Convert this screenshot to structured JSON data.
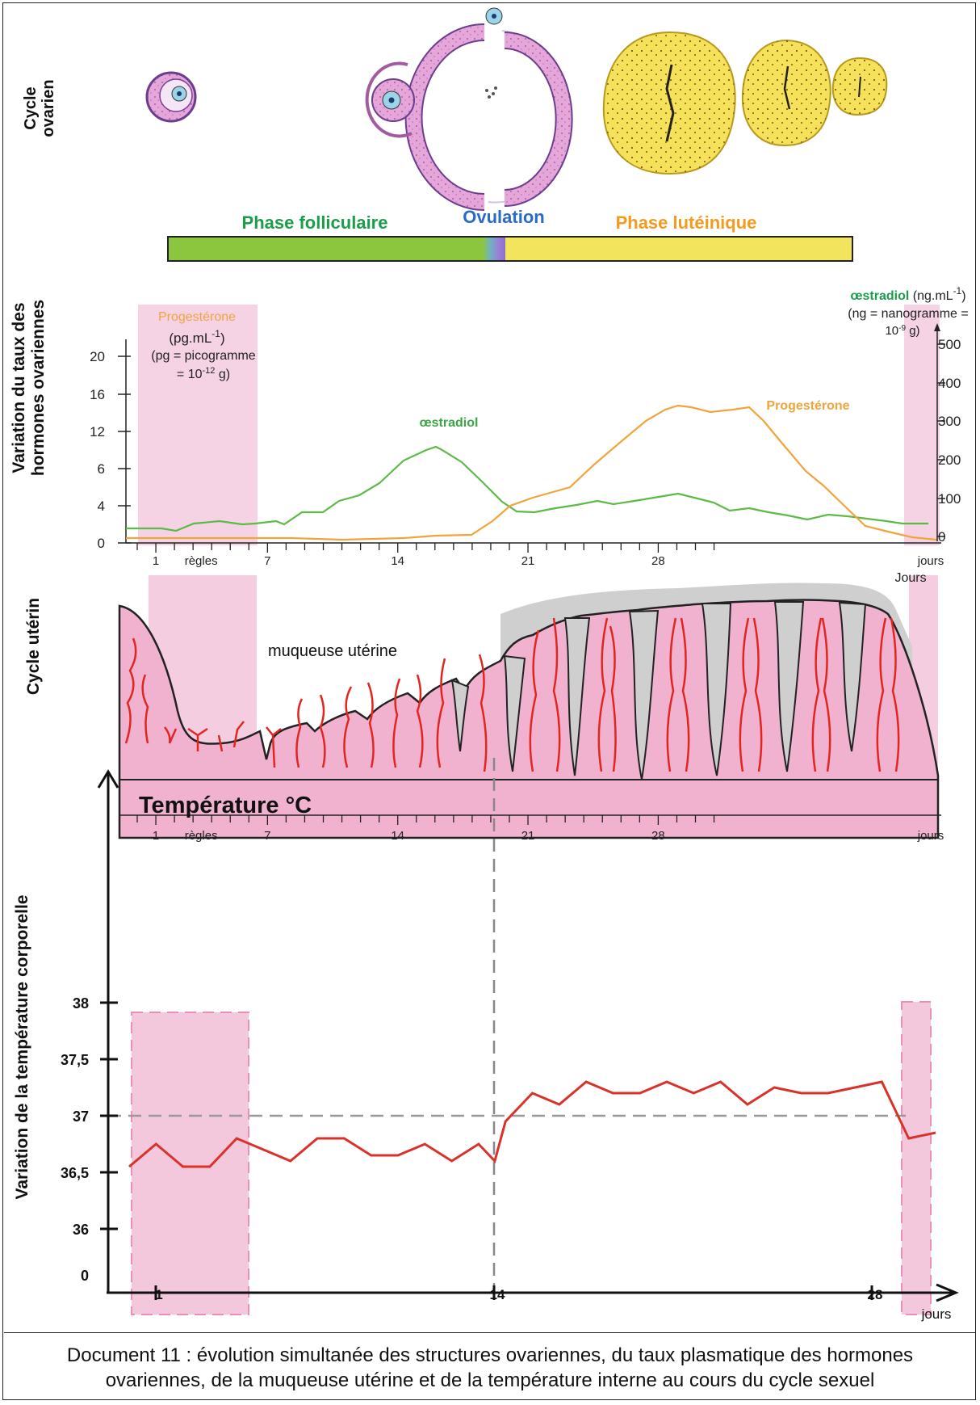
{
  "side_labels": {
    "ovarian_1": "Cycle",
    "ovarian_2": "ovarien",
    "hormones_1": "Variation du taux des",
    "hormones_2": "hormones ovariennes",
    "uterine": "Cycle utérin",
    "temperature": "Variation de la température corporelle"
  },
  "phases": {
    "follicular": "Phase folliculaire",
    "ovulation": "Ovulation",
    "luteal": "Phase lutéinique",
    "colors": {
      "follicular": "#8cc63f",
      "luteal": "#f2e55d",
      "follicular_text": "#1a9e4a",
      "ovulation_text": "#2a6cc4",
      "luteal_text": "#f29b1d"
    }
  },
  "hormone_chart": {
    "progesterone_label": "Progestérone",
    "progesterone_unit": "(pg.mL",
    "progesterone_unit_sup": "-1",
    "progesterone_unit_close": ")",
    "pg_def_1": "(pg = picogramme",
    "pg_def_2": "= 10",
    "pg_def_2_sup": "-12",
    "pg_def_2_end": " g)",
    "estradiol_label": "œstradiol",
    "estradiol_unit": "(ng.mL",
    "estradiol_unit_sup": "-1",
    "estradiol_unit_close": ")",
    "ng_def_1": "(ng = nanogramme =",
    "ng_def_2": "10",
    "ng_def_2_sup": "-9",
    "ng_def_2_end": " g)",
    "estradiol_curve_label": "œstradiol",
    "progesterone_curve_label": "Progestérone",
    "left_ticks": [
      "0",
      "4",
      "6",
      "12",
      "16",
      "20"
    ],
    "right_ticks": [
      "0",
      "100",
      "200",
      "300",
      "400",
      "500"
    ],
    "x_ticks": [
      "1",
      "7",
      "14",
      "21",
      "28"
    ],
    "regles": "règles",
    "jours": "jours",
    "estradiol_color": "#5dba47",
    "progesterone_color": "#f0a53c"
  },
  "uterine_chart": {
    "mucosa_label": "muqueuse utérine",
    "x_ticks": [
      "1",
      "7",
      "14",
      "21",
      "28"
    ],
    "regles": "règles",
    "jours": "jours",
    "jours_top": "Jours",
    "tissue_color": "#f0b2cf",
    "vessel_color": "#e2261f"
  },
  "temperature_chart": {
    "title": "Température °C",
    "y_ticks": [
      "0",
      "36",
      "36,5",
      "37",
      "37,5",
      "38"
    ],
    "x_ticks": [
      "1",
      "14",
      "28"
    ],
    "jours": "jours",
    "line_color": "#d8322a",
    "chart_data": {
      "type": "line",
      "title": "Température °C",
      "xlabel": "jours",
      "ylabel": "Variation de la température corporelle",
      "x": [
        0,
        1,
        2,
        3,
        4,
        5,
        6,
        7,
        8,
        9,
        10,
        11,
        12,
        13,
        13.6,
        14,
        15,
        16,
        17,
        18,
        19,
        20,
        21,
        22,
        23,
        24,
        25,
        26,
        27,
        28,
        29,
        30
      ],
      "y": [
        36.55,
        36.75,
        36.55,
        36.55,
        36.8,
        36.7,
        36.6,
        36.8,
        36.8,
        36.65,
        36.65,
        36.75,
        36.6,
        36.75,
        36.6,
        36.95,
        37.2,
        37.1,
        37.3,
        37.2,
        37.2,
        37.3,
        37.2,
        37.3,
        37.1,
        37.25,
        37.2,
        37.2,
        37.25,
        37.3,
        36.8,
        36.85
      ],
      "threshold": 37,
      "ylim": [
        36,
        38
      ]
    }
  },
  "caption": {
    "line1": "Document 11 :  évolution simultanée des structures ovariennes, du taux plasmatique des hormones",
    "line2": "ovariennes, de la muqueuse utérine et de la température interne au cours du cycle sexuel"
  }
}
